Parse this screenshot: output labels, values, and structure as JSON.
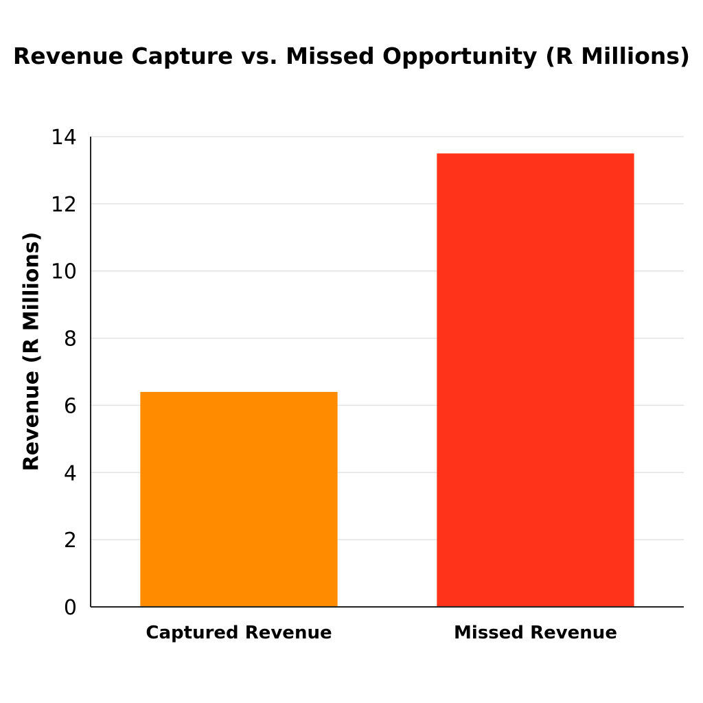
{
  "chart_data": {
    "type": "bar",
    "title": "Revenue Capture vs. Missed Opportunity (R Millions)",
    "xlabel": "",
    "ylabel": "Revenue (R Millions)",
    "categories": [
      "Captured Revenue",
      "Missed Revenue"
    ],
    "values": [
      6.4,
      13.5
    ],
    "colors": [
      "#FF8C00",
      "#FF331A"
    ],
    "ylim": [
      0,
      14
    ],
    "yticks": [
      0,
      2,
      4,
      6,
      8,
      10,
      12,
      14
    ],
    "grid": true,
    "legend": "none"
  }
}
